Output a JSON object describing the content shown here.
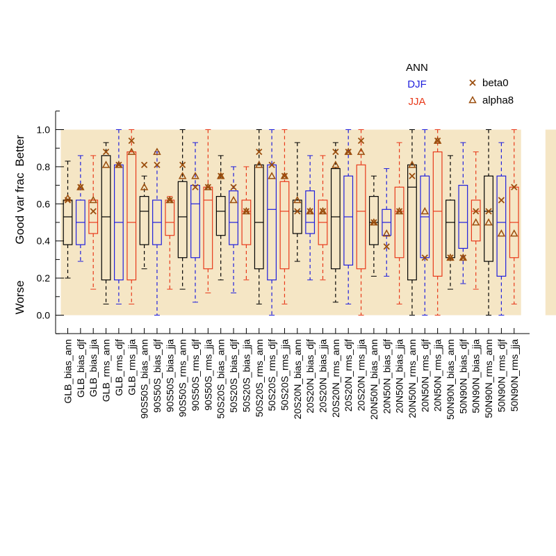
{
  "chart_data": {
    "type": "boxplot",
    "title": "",
    "ylabel": "Good var frac",
    "y_side_labels": {
      "top": "Better",
      "bottom": "Worse"
    },
    "ylim": [
      -0.1,
      1.1
    ],
    "yticks": [
      "0.0",
      "0.2",
      "0.4",
      "0.6",
      "0.8",
      "1.0"
    ],
    "legend": {
      "placement": "top-right",
      "season_labels": [
        {
          "text": "ANN",
          "color": "#000000"
        },
        {
          "text": "DJF",
          "color": "#1f1fdc"
        },
        {
          "text": "JJA",
          "color": "#e8391a"
        }
      ],
      "markers": [
        {
          "symbol": "x",
          "text": "beta0"
        },
        {
          "symbol": "triangle",
          "text": "alpha8"
        }
      ]
    },
    "colors": {
      "ann": "#000000",
      "djf": "#1f1fdc",
      "jja": "#e8391a",
      "shade": "#f5e6c5",
      "marker": "#9a4d0d",
      "ann_box_fill": "#5a3a1a"
    },
    "shaded_groups": [
      [
        0,
        17
      ],
      [
        19,
        20
      ],
      [
        21,
        21
      ],
      [
        23,
        25
      ]
    ],
    "boxes": [
      {
        "label": "GLB_bias_ann",
        "season": "ann",
        "min": 0.2,
        "q1": 0.38,
        "med": 0.53,
        "q3": 0.62,
        "max": 0.83,
        "beta0": 0.62,
        "alpha8": 0.63
      },
      {
        "label": "GLB_bias_djf",
        "season": "djf",
        "min": 0.29,
        "q1": 0.38,
        "med": 0.5,
        "q3": 0.62,
        "max": 0.86,
        "beta0": 0.69,
        "alpha8": 0.69
      },
      {
        "label": "GLB_bias_jja",
        "season": "jja",
        "min": 0.14,
        "q1": 0.44,
        "med": 0.5,
        "q3": 0.62,
        "max": 0.86,
        "beta0": 0.56,
        "alpha8": 0.62
      },
      {
        "label": "GLB_rms_ann",
        "season": "ann",
        "min": 0.06,
        "q1": 0.19,
        "med": 0.53,
        "q3": 0.86,
        "max": 0.93,
        "beta0": 0.88,
        "alpha8": 0.81
      },
      {
        "label": "GLB_rms_djf",
        "season": "djf",
        "min": 0.06,
        "q1": 0.19,
        "med": 0.5,
        "q3": 0.81,
        "max": 1.0,
        "beta0": 0.81,
        "alpha8": 0.81
      },
      {
        "label": "GLB_rms_jja",
        "season": "jja",
        "min": 0.06,
        "q1": 0.19,
        "med": 0.5,
        "q3": 0.88,
        "max": 1.0,
        "beta0": 0.94,
        "alpha8": 0.88
      },
      {
        "label": "90S50S_bias_ann",
        "season": "ann",
        "min": 0.25,
        "q1": 0.38,
        "med": 0.56,
        "q3": 0.64,
        "max": 0.75,
        "beta0": 0.81,
        "alpha8": 0.69
      },
      {
        "label": "90S50S_bias_djf",
        "season": "djf",
        "min": 0.0,
        "q1": 0.38,
        "med": 0.5,
        "q3": 0.62,
        "max": 0.88,
        "beta0": 0.81,
        "alpha8": 0.88
      },
      {
        "label": "90S50S_bias_jja",
        "season": "jja",
        "min": 0.14,
        "q1": 0.43,
        "med": 0.5,
        "q3": 0.62,
        "max": 0.64,
        "beta0": 0.62,
        "alpha8": 0.62
      },
      {
        "label": "90S50S_rms_ann",
        "season": "ann",
        "min": 0.14,
        "q1": 0.31,
        "med": 0.53,
        "q3": 0.72,
        "max": 1.0,
        "beta0": 0.81,
        "alpha8": 0.75
      },
      {
        "label": "90S50S_rms_djf",
        "season": "djf",
        "min": 0.07,
        "q1": 0.31,
        "med": 0.6,
        "q3": 0.7,
        "max": 0.93,
        "beta0": 0.69,
        "alpha8": 0.75
      },
      {
        "label": "90S50S_rms_jja",
        "season": "jja",
        "min": 0.12,
        "q1": 0.25,
        "med": 0.62,
        "q3": 0.69,
        "max": 1.0,
        "beta0": 0.69,
        "alpha8": 0.69
      },
      {
        "label": "50S20S_bias_ann",
        "season": "ann",
        "min": 0.19,
        "q1": 0.43,
        "med": 0.56,
        "q3": 0.64,
        "max": 0.86,
        "beta0": 0.75,
        "alpha8": 0.75
      },
      {
        "label": "50S20S_bias_djf",
        "season": "djf",
        "min": 0.12,
        "q1": 0.38,
        "med": 0.5,
        "q3": 0.67,
        "max": 0.8,
        "beta0": 0.69,
        "alpha8": 0.62
      },
      {
        "label": "50S20S_bias_jja",
        "season": "jja",
        "min": 0.19,
        "q1": 0.38,
        "med": 0.56,
        "q3": 0.62,
        "max": 0.8,
        "beta0": 0.56,
        "alpha8": 0.56
      },
      {
        "label": "50S20S_rms_ann",
        "season": "ann",
        "min": 0.06,
        "q1": 0.25,
        "med": 0.5,
        "q3": 0.81,
        "max": 1.0,
        "beta0": 0.88,
        "alpha8": 0.81
      },
      {
        "label": "50S20S_rms_djf",
        "season": "djf",
        "min": 0.0,
        "q1": 0.19,
        "med": 0.57,
        "q3": 0.81,
        "max": 1.0,
        "beta0": 0.81,
        "alpha8": 0.75
      },
      {
        "label": "50S20S_rms_jja",
        "season": "jja",
        "min": 0.06,
        "q1": 0.25,
        "med": 0.56,
        "q3": 0.72,
        "max": 1.0,
        "beta0": 0.75,
        "alpha8": 0.75
      },
      {
        "label": "20S20N_bias_ann",
        "season": "ann",
        "min": 0.29,
        "q1": 0.44,
        "med": 0.56,
        "q3": 0.62,
        "max": 0.93,
        "beta0": 0.56,
        "alpha8": 0.62
      },
      {
        "label": "20S20N_bias_djf",
        "season": "djf",
        "min": 0.19,
        "q1": 0.44,
        "med": 0.5,
        "q3": 0.67,
        "max": 0.86,
        "beta0": 0.56,
        "alpha8": 0.56
      },
      {
        "label": "20S20N_bias_jja",
        "season": "jja",
        "min": 0.19,
        "q1": 0.38,
        "med": 0.5,
        "q3": 0.62,
        "max": 0.86,
        "beta0": 0.56,
        "alpha8": 0.56
      },
      {
        "label": "20S20N_rms_ann",
        "season": "ann",
        "min": 0.07,
        "q1": 0.25,
        "med": 0.53,
        "q3": 0.79,
        "max": 0.93,
        "beta0": 0.88,
        "alpha8": 0.81
      },
      {
        "label": "20S20N_rms_djf",
        "season": "djf",
        "min": 0.06,
        "q1": 0.27,
        "med": 0.53,
        "q3": 0.75,
        "max": 1.0,
        "beta0": 0.88,
        "alpha8": 0.88
      },
      {
        "label": "20S20N_rms_jja",
        "season": "jja",
        "min": 0.0,
        "q1": 0.25,
        "med": 0.56,
        "q3": 0.81,
        "max": 1.0,
        "beta0": 0.94,
        "alpha8": 0.88
      },
      {
        "label": "20N50N_bias_ann",
        "season": "ann",
        "min": 0.21,
        "q1": 0.38,
        "med": 0.5,
        "q3": 0.64,
        "max": 0.75,
        "beta0": 0.5,
        "alpha8": 0.5
      },
      {
        "label": "20N50N_bias_djf",
        "season": "djf",
        "min": 0.21,
        "q1": 0.43,
        "med": 0.5,
        "q3": 0.57,
        "max": 0.79,
        "beta0": 0.37,
        "alpha8": 0.44
      },
      {
        "label": "20N50N_bias_jja",
        "season": "jja",
        "min": 0.06,
        "q1": 0.31,
        "med": 0.56,
        "q3": 0.69,
        "max": 0.93,
        "beta0": 0.56,
        "alpha8": 0.56
      },
      {
        "label": "20N50N_rms_ann",
        "season": "ann",
        "min": 0.0,
        "q1": 0.19,
        "med": 0.69,
        "q3": 0.81,
        "max": 1.0,
        "beta0": 0.75,
        "alpha8": 0.81
      },
      {
        "label": "20N50N_rms_djf",
        "season": "djf",
        "min": 0.0,
        "q1": 0.31,
        "med": 0.53,
        "q3": 0.75,
        "max": 1.0,
        "beta0": 0.31,
        "alpha8": 0.56
      },
      {
        "label": "20N50N_rms_jja",
        "season": "jja",
        "min": 0.0,
        "q1": 0.21,
        "med": 0.56,
        "q3": 0.88,
        "max": 1.0,
        "beta0": 0.94,
        "alpha8": 0.94
      },
      {
        "label": "50N90N_bias_ann",
        "season": "ann",
        "min": 0.14,
        "q1": 0.31,
        "med": 0.5,
        "q3": 0.62,
        "max": 0.86,
        "beta0": 0.31,
        "alpha8": 0.31
      },
      {
        "label": "50N90N_bias_djf",
        "season": "djf",
        "min": 0.17,
        "q1": 0.36,
        "med": 0.5,
        "q3": 0.7,
        "max": 0.93,
        "beta0": 0.31,
        "alpha8": 0.31
      },
      {
        "label": "50N90N_bias_jja",
        "season": "jja",
        "min": 0.14,
        "q1": 0.4,
        "med": 0.56,
        "q3": 0.62,
        "max": 0.88,
        "beta0": 0.56,
        "alpha8": 0.5
      },
      {
        "label": "50N90N_rms_ann",
        "season": "ann",
        "min": 0.0,
        "q1": 0.29,
        "med": 0.56,
        "q3": 0.75,
        "max": 1.0,
        "beta0": 0.56,
        "alpha8": 0.5
      },
      {
        "label": "50N90N_rms_djf",
        "season": "djf",
        "min": 0.0,
        "q1": 0.21,
        "med": 0.5,
        "q3": 0.75,
        "max": 0.93,
        "beta0": 0.62,
        "alpha8": 0.44
      },
      {
        "label": "50N90N_rms_jja",
        "season": "jja",
        "min": 0.06,
        "q1": 0.31,
        "med": 0.5,
        "q3": 0.69,
        "max": 1.0,
        "beta0": 0.69,
        "alpha8": 0.44
      }
    ]
  }
}
